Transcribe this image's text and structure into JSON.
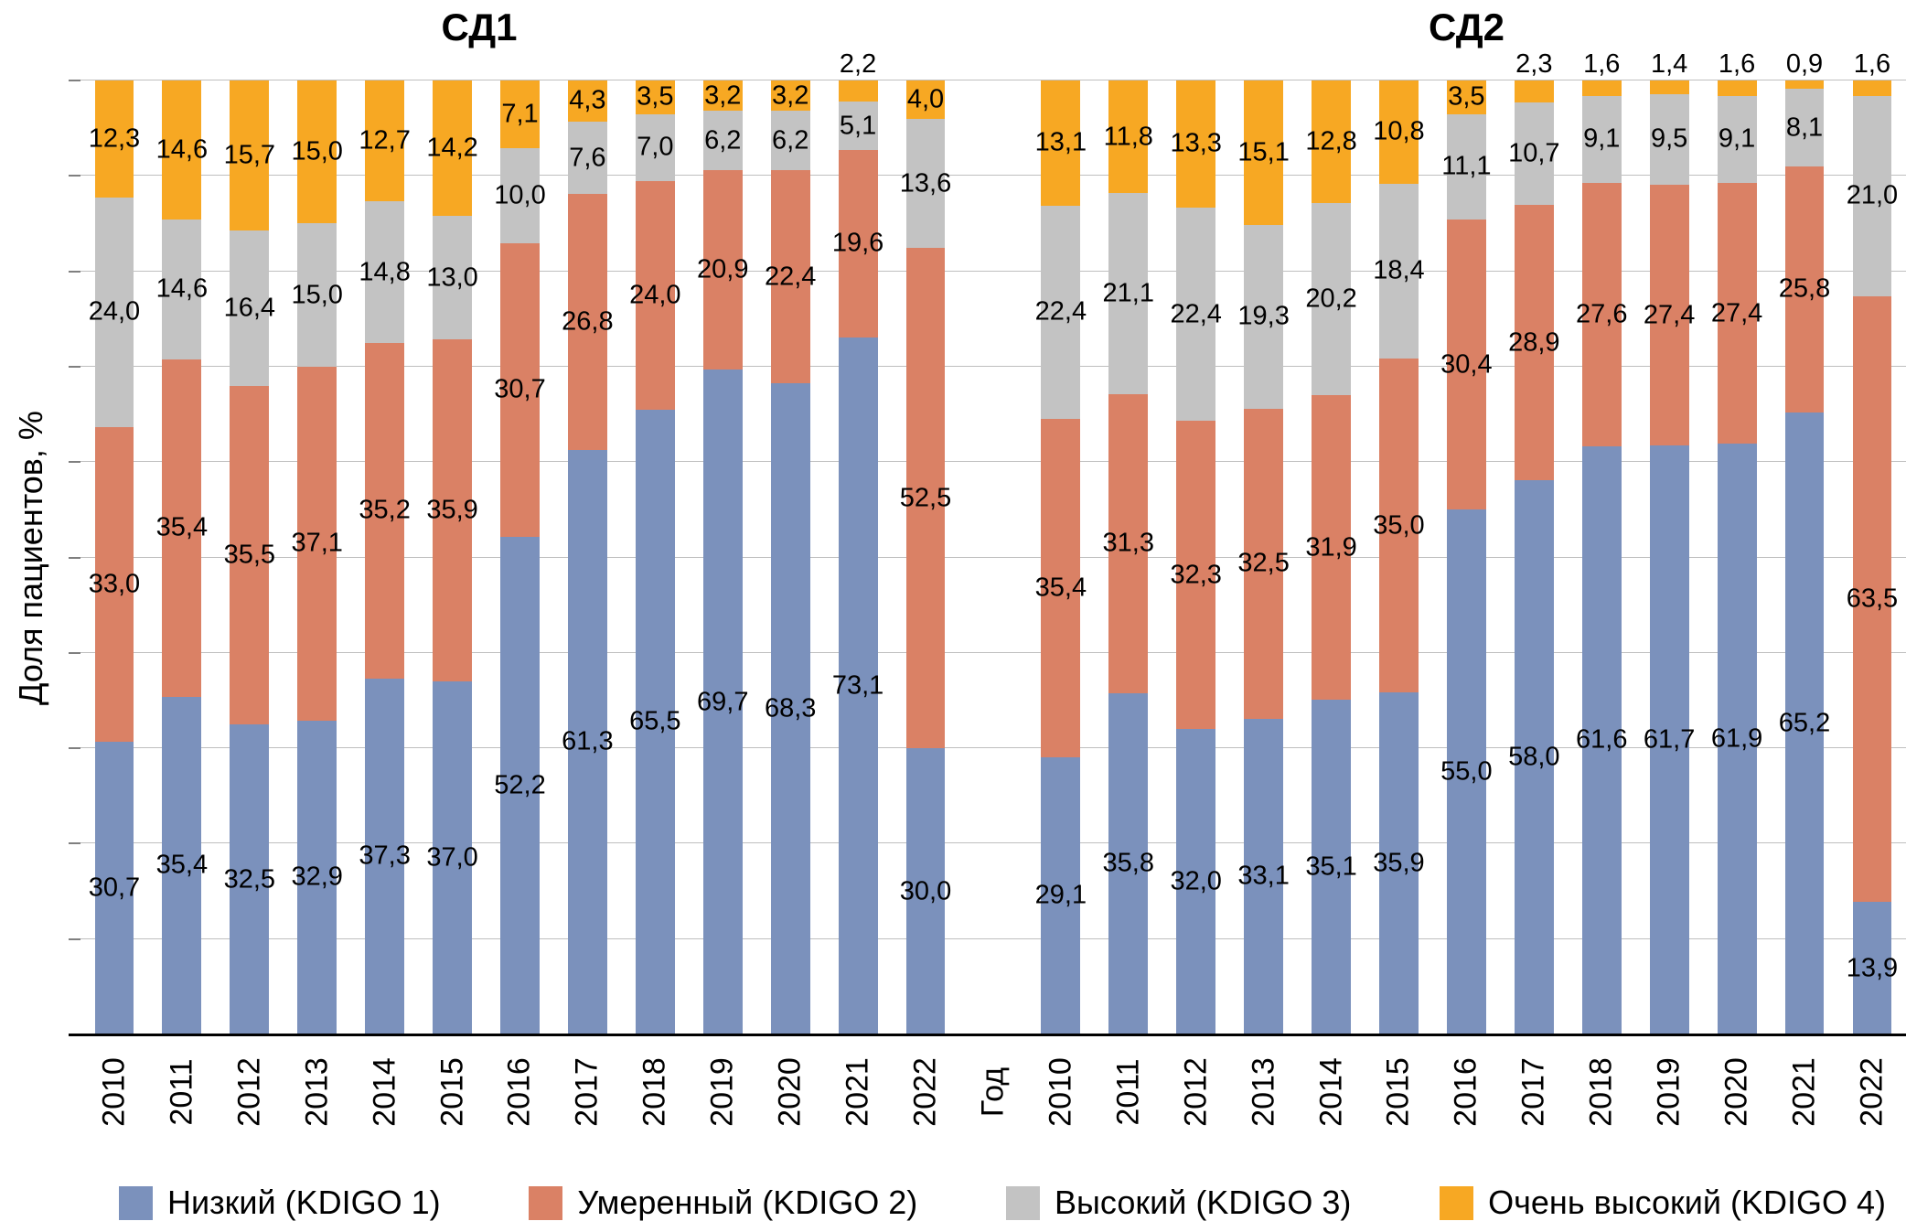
{
  "panel_titles": {
    "left": "СД1",
    "right": "СД2"
  },
  "y_axis": {
    "label": "Доля пациентов, %",
    "ylim": [
      0,
      100
    ],
    "gridline_step_percent": 10
  },
  "x_axis": {
    "label": "Год"
  },
  "colors": {
    "kdigo1": "#7B91BC",
    "kdigo2": "#DA8165",
    "kdigo3": "#C3C3C3",
    "kdigo4": "#F7A823",
    "gridline": "#BFBFBF",
    "axis": "#000000",
    "label_text": "#000000"
  },
  "legend": {
    "items": [
      {
        "label": "Низкий (KDIGO 1)",
        "color": "#7B91BC"
      },
      {
        "label": "Умеренный (KDIGO 2)",
        "color": "#DA8165"
      },
      {
        "label": "Высокий (KDIGO 3)",
        "color": "#C3C3C3"
      },
      {
        "label": "Очень высокий (KDIGO 4)",
        "color": "#F7A823"
      }
    ]
  },
  "chart_data": [
    {
      "type": "bar",
      "stacked": true,
      "percent_stacked": true,
      "title": "СД1",
      "categories": [
        "2010",
        "2011",
        "2012",
        "2013",
        "2014",
        "2015",
        "2016",
        "2017",
        "2018",
        "2019",
        "2020",
        "2021",
        "2022"
      ],
      "series": [
        {
          "name": "Низкий (KDIGO 1)",
          "color": "#7B91BC",
          "values": [
            30.7,
            35.4,
            32.5,
            32.9,
            37.3,
            37.0,
            52.2,
            61.3,
            65.5,
            69.7,
            68.3,
            73.1,
            30.0
          ]
        },
        {
          "name": "Умеренный (KDIGO 2)",
          "color": "#DA8165",
          "values": [
            33.0,
            35.4,
            35.5,
            37.1,
            35.2,
            35.9,
            30.7,
            26.8,
            24.0,
            20.9,
            22.4,
            19.6,
            52.5
          ]
        },
        {
          "name": "Высокий (KDIGO 3)",
          "color": "#C3C3C3",
          "values": [
            24.0,
            14.6,
            16.4,
            15.0,
            14.8,
            13.0,
            10.0,
            7.6,
            7.0,
            6.2,
            6.2,
            5.1,
            13.6
          ]
        },
        {
          "name": "Очень высокий (KDIGO 4)",
          "color": "#F7A823",
          "values": [
            12.3,
            14.6,
            15.7,
            15.0,
            12.7,
            14.2,
            7.1,
            4.3,
            3.5,
            3.2,
            3.2,
            2.2,
            4.0
          ]
        }
      ],
      "xlabel": "Год",
      "ylabel": "Доля пациентов, %",
      "ylim": [
        0,
        100
      ],
      "grid": true,
      "legend_position": "bottom"
    },
    {
      "type": "bar",
      "stacked": true,
      "percent_stacked": true,
      "title": "СД2",
      "categories": [
        "2010",
        "2011",
        "2012",
        "2013",
        "2014",
        "2015",
        "2016",
        "2017",
        "2018",
        "2019",
        "2020",
        "2021",
        "2022"
      ],
      "series": [
        {
          "name": "Низкий (KDIGO 1)",
          "color": "#7B91BC",
          "values": [
            29.1,
            35.8,
            32.0,
            33.1,
            35.1,
            35.9,
            55.0,
            58.0,
            61.6,
            61.7,
            61.9,
            65.2,
            13.9
          ]
        },
        {
          "name": "Умеренный (KDIGO 2)",
          "color": "#DA8165",
          "values": [
            35.4,
            31.3,
            32.3,
            32.5,
            31.9,
            35.0,
            30.4,
            28.9,
            27.6,
            27.4,
            27.4,
            25.8,
            63.5
          ]
        },
        {
          "name": "Высокий (KDIGO 3)",
          "color": "#C3C3C3",
          "values": [
            22.4,
            21.1,
            22.4,
            19.3,
            20.2,
            18.4,
            11.1,
            10.7,
            9.1,
            9.5,
            9.1,
            8.1,
            21.0
          ]
        },
        {
          "name": "Очень высокий (KDIGO 4)",
          "color": "#F7A823",
          "values": [
            13.1,
            11.8,
            13.3,
            15.1,
            12.8,
            10.8,
            3.5,
            2.3,
            1.6,
            1.4,
            1.6,
            0.9,
            1.6
          ]
        }
      ],
      "xlabel": "Год",
      "ylabel": "Доля пациентов, %",
      "ylim": [
        0,
        100
      ],
      "grid": true,
      "legend_position": "bottom"
    }
  ]
}
